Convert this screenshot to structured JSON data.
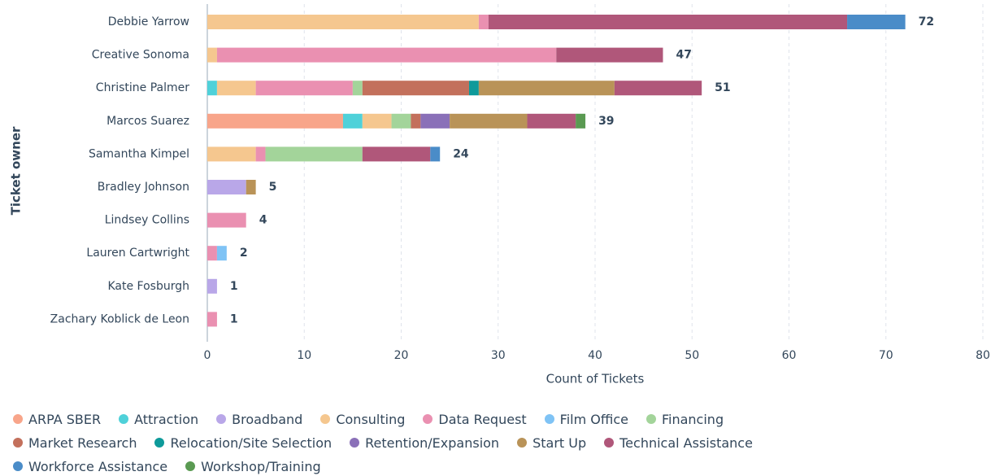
{
  "chart_data": {
    "type": "stacked-bar-horizontal",
    "x_label": "Count of Tickets",
    "y_label": "Ticket owner",
    "categories": [
      "Debbie Yarrow",
      "Creative Sonoma",
      "Christine Palmer",
      "Marcos Suarez",
      "Samantha Kimpel",
      "Bradley Johnson",
      "Lindsey Collins",
      "Lauren Cartwright",
      "Kate Fosburgh",
      "Zachary Koblick de Leon"
    ],
    "totals": [
      72,
      47,
      51,
      39,
      24,
      5,
      4,
      2,
      1,
      1
    ],
    "series": [
      {
        "name": "ARPA SBER",
        "color": "#f8a58a",
        "values": [
          0,
          0,
          0,
          14,
          0,
          0,
          0,
          0,
          0,
          0
        ]
      },
      {
        "name": "Attraction",
        "color": "#4fd1d9",
        "values": [
          0,
          0,
          1,
          2,
          0,
          0,
          0,
          0,
          0,
          0
        ]
      },
      {
        "name": "Broadband",
        "color": "#b9a7e8",
        "values": [
          0,
          0,
          0,
          0,
          0,
          4,
          0,
          0,
          1,
          0
        ]
      },
      {
        "name": "Consulting",
        "color": "#f5c78f",
        "values": [
          28,
          1,
          4,
          3,
          5,
          0,
          0,
          0,
          0,
          0
        ]
      },
      {
        "name": "Data Request",
        "color": "#ea90b1",
        "values": [
          1,
          35,
          10,
          0,
          1,
          0,
          4,
          1,
          0,
          1
        ]
      },
      {
        "name": "Film Office",
        "color": "#7fc3f5",
        "values": [
          0,
          0,
          0,
          0,
          0,
          0,
          0,
          1,
          0,
          0
        ]
      },
      {
        "name": "Financing",
        "color": "#a3d49a",
        "values": [
          0,
          0,
          1,
          2,
          10,
          0,
          0,
          0,
          0,
          0
        ]
      },
      {
        "name": "Market Research",
        "color": "#c3705c",
        "values": [
          0,
          0,
          11,
          1,
          0,
          0,
          0,
          0,
          0,
          0
        ]
      },
      {
        "name": "Relocation/Site Selection",
        "color": "#0e9a9a",
        "values": [
          0,
          0,
          1,
          0,
          0,
          0,
          0,
          0,
          0,
          0
        ]
      },
      {
        "name": "Retention/Expansion",
        "color": "#8a70b8",
        "values": [
          0,
          0,
          0,
          3,
          0,
          0,
          0,
          0,
          0,
          0
        ]
      },
      {
        "name": "Start Up",
        "color": "#b99358",
        "values": [
          0,
          0,
          14,
          8,
          0,
          1,
          0,
          0,
          0,
          0
        ]
      },
      {
        "name": "Technical Assistance",
        "color": "#b0577a",
        "values": [
          37,
          11,
          9,
          5,
          7,
          0,
          0,
          0,
          0,
          0
        ]
      },
      {
        "name": "Workforce Assistance",
        "color": "#4a8cc8",
        "values": [
          6,
          0,
          0,
          0,
          1,
          0,
          0,
          0,
          0,
          0
        ]
      },
      {
        "name": "Workshop/Training",
        "color": "#5a9a52",
        "values": [
          0,
          0,
          0,
          1,
          0,
          0,
          0,
          0,
          0,
          0
        ]
      }
    ],
    "xlim": [
      0,
      80
    ],
    "xticks": [
      0,
      10,
      20,
      30,
      40,
      50,
      60,
      70,
      80
    ],
    "grid": true
  }
}
